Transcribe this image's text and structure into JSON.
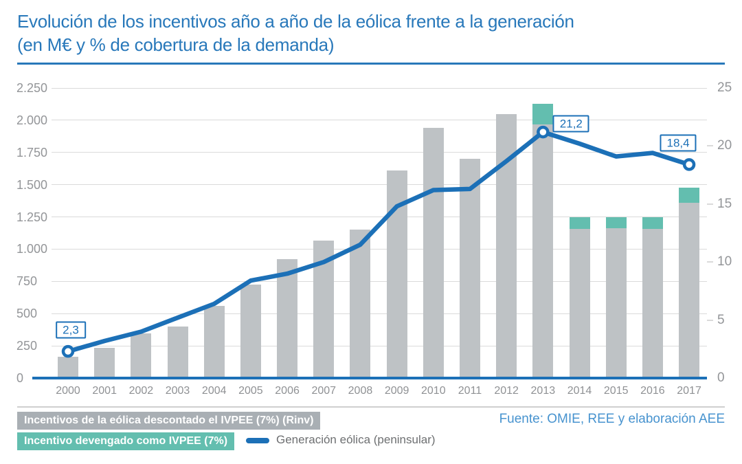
{
  "title": {
    "line1": "Evolución de los incentivos año a año de la eólica frente a la generación",
    "line2": "(en M€ y % de cobertura de la demanda)"
  },
  "source": "Fuente: OMIE, REE y elaboración AEE",
  "legend": {
    "bar_gray": "Incentivos de la eólica descontado el IVPEE (7%) (Rinv)",
    "bar_teal": "Incentivo devengado como IVPEE (7%)",
    "line": "Generación eólica (peninsular)"
  },
  "colors": {
    "blue": "#1C70B7",
    "teal": "#63BEAF",
    "bar_gray": "#BEC2C5",
    "legend_gray": "#A9AFB4",
    "grid": "#DADADA",
    "tick_text": "#939598",
    "x_text": "#8F9194",
    "fuente_blue": "#4793CF",
    "line_label_gray": "#6D6F71",
    "divider": "#CFCFCF",
    "title_blue": "#2878BA"
  },
  "chart_data": {
    "type": "bar+line combo (stacked bars, left axis M€; line, right axis %)",
    "categories": [
      "2000",
      "2001",
      "2002",
      "2003",
      "2004",
      "2005",
      "2006",
      "2007",
      "2008",
      "2009",
      "2010",
      "2011",
      "2012",
      "2013",
      "2014",
      "2015",
      "2016",
      "2017"
    ],
    "series": [
      {
        "name": "Incentivos de la eólica descontado el IVPEE (7%) (Rinv)",
        "type": "bar",
        "axis": "left",
        "values": [
          165,
          235,
          345,
          400,
          560,
          725,
          920,
          1065,
          1150,
          1610,
          1940,
          1700,
          2045,
          1965,
          1155,
          1160,
          1155,
          1360
        ]
      },
      {
        "name": "Incentivo devengado como IVPEE (7%)",
        "type": "bar-stacked-on-previous",
        "axis": "left",
        "values": [
          0,
          0,
          0,
          0,
          0,
          0,
          0,
          0,
          0,
          0,
          0,
          0,
          0,
          160,
          95,
          90,
          95,
          115
        ]
      },
      {
        "name": "Generación eólica (peninsular)",
        "type": "line",
        "axis": "right",
        "values": [
          2.3,
          3.2,
          4.0,
          5.2,
          6.4,
          8.4,
          9.0,
          10.0,
          11.5,
          14.8,
          16.2,
          16.3,
          18.7,
          21.2,
          20.2,
          19.1,
          19.4,
          18.4
        ]
      }
    ],
    "left_axis": {
      "min": 0,
      "max": 2250,
      "ticks": [
        {
          "v": 0,
          "label": "0"
        },
        {
          "v": 250,
          "label": "250"
        },
        {
          "v": 500,
          "label": "500"
        },
        {
          "v": 750,
          "label": "750"
        },
        {
          "v": 1000,
          "label": "1.000"
        },
        {
          "v": 1250,
          "label": "1.250"
        },
        {
          "v": 1500,
          "label": "1.500"
        },
        {
          "v": 1750,
          "label": "1.750"
        },
        {
          "v": 2000,
          "label": "2.000"
        },
        {
          "v": 2250,
          "label": "2.250"
        }
      ]
    },
    "right_axis": {
      "min": 0,
      "max": 25,
      "ticks": [
        {
          "v": 0,
          "label": "0"
        },
        {
          "v": 5,
          "label": "5"
        },
        {
          "v": 10,
          "label": "10"
        },
        {
          "v": 15,
          "label": "15"
        },
        {
          "v": 20,
          "label": "20"
        },
        {
          "v": 25,
          "label": "25"
        }
      ]
    },
    "markers_at_indices": [
      0,
      13,
      17
    ],
    "annotations": [
      {
        "index": 0,
        "label": "2,3"
      },
      {
        "index": 13,
        "label": "21,2"
      },
      {
        "index": 17,
        "label": "18,4"
      }
    ],
    "grid": "horizontal, every 250 M€",
    "legend_position": "bottom-left"
  }
}
